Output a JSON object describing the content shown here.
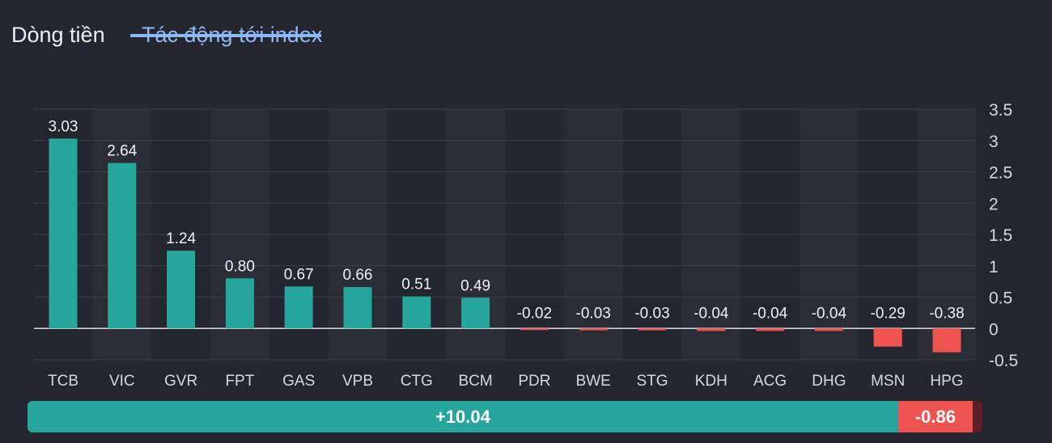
{
  "tabs": {
    "flow_label": "Dòng tiền",
    "impact_label": "Tác động tới index",
    "active": "impact"
  },
  "colors": {
    "positive": "#26a69a",
    "negative": "#ef5350",
    "tab_active": "#8fb8f7",
    "background": "#23262e"
  },
  "chart_data": {
    "type": "bar",
    "title": "",
    "xlabel": "",
    "ylabel": "",
    "ylim": [
      -0.5,
      3.5
    ],
    "yticks": [
      "3.5",
      "3",
      "2.5",
      "2",
      "1.5",
      "1",
      "0.5",
      "0",
      "-0.5"
    ],
    "ytick_values": [
      3.5,
      3,
      2.5,
      2,
      1.5,
      1,
      0.5,
      0,
      -0.5
    ],
    "y_axis_side": "right",
    "grid": true,
    "categories": [
      "TCB",
      "VIC",
      "GVR",
      "FPT",
      "GAS",
      "VPB",
      "CTG",
      "BCM",
      "PDR",
      "BWE",
      "STG",
      "KDH",
      "ACG",
      "DHG",
      "MSN",
      "HPG"
    ],
    "values": [
      3.03,
      2.64,
      1.24,
      0.8,
      0.67,
      0.66,
      0.51,
      0.49,
      -0.02,
      -0.03,
      -0.03,
      -0.04,
      -0.04,
      -0.04,
      -0.29,
      -0.38
    ],
    "value_labels": [
      "3.03",
      "2.64",
      "1.24",
      "0.80",
      "0.67",
      "0.66",
      "0.51",
      "0.49",
      "-0.02",
      "-0.03",
      "-0.03",
      "-0.04",
      "-0.04",
      "-0.04",
      "-0.29",
      "-0.38"
    ]
  },
  "summary": {
    "positive_label": "+10.04",
    "negative_label": "-0.86",
    "positive_value": 10.04,
    "negative_value": 0.86
  }
}
